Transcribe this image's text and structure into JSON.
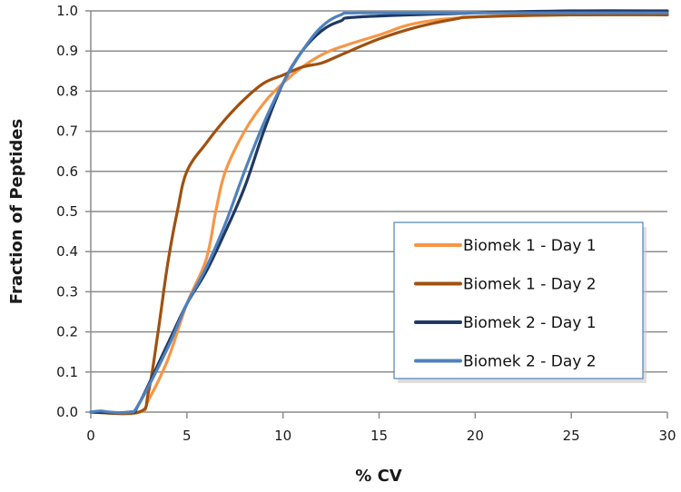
{
  "chart_data": {
    "type": "line",
    "title": "",
    "xlabel": "% CV",
    "ylabel": "Fraction of Peptides",
    "xlim": [
      0,
      30
    ],
    "ylim": [
      0,
      1.0
    ],
    "xticks": [
      "0",
      "5",
      "10",
      "15",
      "20",
      "25",
      "30"
    ],
    "xtick_values": [
      0,
      5,
      10,
      15,
      20,
      25,
      30
    ],
    "yticks": [
      "0.0",
      "0.1",
      "0.2",
      "0.3",
      "0.4",
      "0.5",
      "0.6",
      "0.7",
      "0.8",
      "0.9",
      "1.0"
    ],
    "ytick_values": [
      0,
      0.1,
      0.2,
      0.3,
      0.4,
      0.5,
      0.6,
      0.7,
      0.8,
      0.9,
      1.0
    ],
    "grid": "horizontal",
    "legend_position": "center-right",
    "series": [
      {
        "name": "Biomek 1 - Day 1",
        "color": "#F79646",
        "x": [
          0,
          2.5,
          3,
          4,
          5,
          6,
          6.5,
          7,
          8,
          9,
          10,
          11,
          12,
          13,
          15,
          17,
          20,
          25,
          30
        ],
        "y": [
          0,
          0,
          0.03,
          0.13,
          0.27,
          0.38,
          0.5,
          0.6,
          0.7,
          0.77,
          0.82,
          0.86,
          0.89,
          0.91,
          0.94,
          0.97,
          0.985,
          0.99,
          0.99
        ]
      },
      {
        "name": "Biomek 1 - Day 2",
        "color": "#A0500F",
        "x": [
          0,
          2.5,
          3,
          3.5,
          4,
          4.5,
          5,
          6,
          7,
          8,
          9,
          10,
          11,
          12,
          13,
          15,
          17,
          19,
          20,
          25,
          30
        ],
        "y": [
          0,
          0,
          0.05,
          0.2,
          0.37,
          0.5,
          0.6,
          0.67,
          0.73,
          0.78,
          0.82,
          0.84,
          0.86,
          0.87,
          0.89,
          0.93,
          0.96,
          0.98,
          0.985,
          0.99,
          0.99
        ]
      },
      {
        "name": "Biomek 2 - Day 1",
        "color": "#1F3864",
        "x": [
          0,
          2,
          2.5,
          4,
          5,
          6,
          7,
          8,
          9,
          10,
          11,
          12,
          13,
          14,
          20,
          25,
          30
        ],
        "y": [
          0,
          0,
          0.02,
          0.17,
          0.27,
          0.35,
          0.45,
          0.56,
          0.7,
          0.82,
          0.9,
          0.95,
          0.975,
          0.985,
          0.995,
          1.0,
          1.0
        ]
      },
      {
        "name": "Biomek 2 - Day 2",
        "color": "#4F81BD",
        "x": [
          0,
          0.5,
          1,
          2,
          2.5,
          4,
          5,
          6,
          7,
          8,
          9,
          10,
          11,
          12,
          13,
          14,
          20,
          25,
          30
        ],
        "y": [
          0,
          0.003,
          0,
          0,
          0.02,
          0.16,
          0.27,
          0.36,
          0.47,
          0.6,
          0.72,
          0.82,
          0.9,
          0.96,
          0.99,
          0.995,
          0.995,
          0.995,
          0.995
        ]
      }
    ]
  }
}
